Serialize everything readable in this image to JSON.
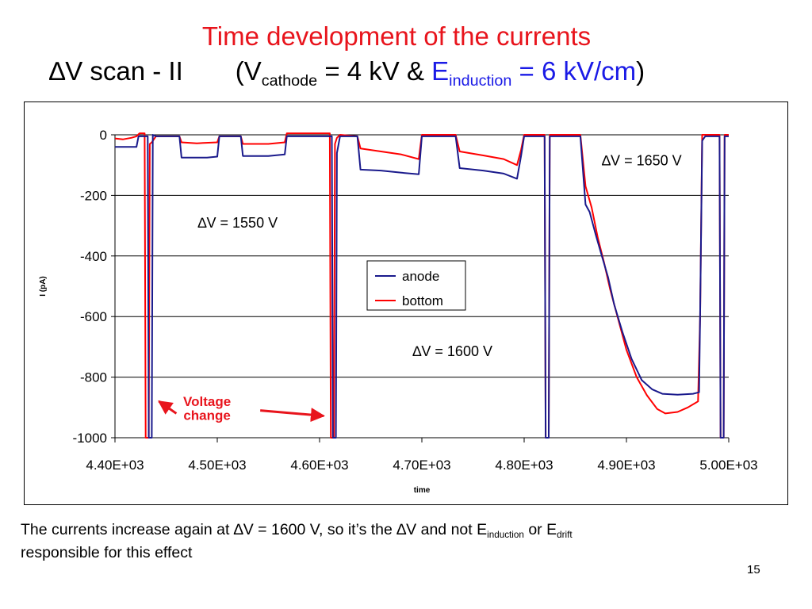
{
  "slide": {
    "title_line1": "Time development of the currents",
    "title_line2_prefix": "∆V scan - II",
    "title_paren_open": "(V",
    "title_cathode_sub": "cathode",
    "title_mid": " = 4 kV  & ",
    "title_e": "E",
    "title_induction_sub": "induction",
    "title_value": " = 6 kV/cm",
    "title_paren_close": ")",
    "caption_part1": "The currents increase again at  ∆V = 1600 V, so it’s the ∆V and not E",
    "caption_induction_sub": "induction",
    "caption_part2": " or E",
    "caption_drift_sub": "drift",
    "caption_line2": "responsible for this effect",
    "page_number": "15",
    "colors": {
      "title_red": "#e8141c",
      "title_blue": "#1a1ae6",
      "anode": "#1a1a8c",
      "bottom": "#ff0000",
      "annotation_red": "#e8141c"
    }
  },
  "chart_data": {
    "type": "line",
    "xlabel": "time",
    "ylabel": "I (pA)",
    "xlim": [
      4400,
      5000
    ],
    "ylim": [
      -1000,
      0
    ],
    "x_ticks": [
      4400,
      4500,
      4600,
      4700,
      4800,
      4900,
      5000
    ],
    "x_tick_labels": [
      "4.40E+03",
      "4.50E+03",
      "4.60E+03",
      "4.70E+03",
      "4.80E+03",
      "4.90E+03",
      "5.00E+03"
    ],
    "y_ticks": [
      0,
      -200,
      -400,
      -600,
      -800,
      -1000
    ],
    "y_tick_labels": [
      "0",
      "-200",
      "-400",
      "-600",
      "-800",
      "-1000"
    ],
    "grid": "horizontal",
    "legend_position": "center",
    "series": [
      {
        "name": "anode",
        "color": "#1a1a8c",
        "points": [
          [
            4400,
            -40
          ],
          [
            4421,
            -40
          ],
          [
            4423,
            -5
          ],
          [
            4432,
            -5
          ],
          [
            4433,
            -1000
          ],
          [
            4436,
            -1000
          ],
          [
            4437,
            0
          ],
          [
            4440,
            -5
          ],
          [
            4463,
            -5
          ],
          [
            4465,
            -75
          ],
          [
            4490,
            -75
          ],
          [
            4500,
            -72
          ],
          [
            4502,
            -5
          ],
          [
            4523,
            -5
          ],
          [
            4525,
            -70
          ],
          [
            4550,
            -70
          ],
          [
            4566,
            -65
          ],
          [
            4568,
            -5
          ],
          [
            4600,
            -5
          ],
          [
            4612,
            -5
          ],
          [
            4613,
            -1000
          ],
          [
            4616,
            -1000
          ],
          [
            4617,
            -60
          ],
          [
            4620,
            -5
          ],
          [
            4637,
            -5
          ],
          [
            4640,
            -115
          ],
          [
            4660,
            -118
          ],
          [
            4680,
            -125
          ],
          [
            4697,
            -130
          ],
          [
            4700,
            -5
          ],
          [
            4733,
            -5
          ],
          [
            4737,
            -110
          ],
          [
            4760,
            -118
          ],
          [
            4780,
            -128
          ],
          [
            4793,
            -145
          ],
          [
            4797,
            -70
          ],
          [
            4800,
            -5
          ],
          [
            4820,
            -5
          ],
          [
            4821,
            -1000
          ],
          [
            4824,
            -1000
          ],
          [
            4825,
            -5
          ],
          [
            4855,
            -5
          ],
          [
            4860,
            -230
          ],
          [
            4864,
            -255
          ],
          [
            4870,
            -330
          ],
          [
            4876,
            -400
          ],
          [
            4882,
            -470
          ],
          [
            4888,
            -560
          ],
          [
            4896,
            -650
          ],
          [
            4905,
            -740
          ],
          [
            4915,
            -810
          ],
          [
            4925,
            -840
          ],
          [
            4935,
            -855
          ],
          [
            4950,
            -858
          ],
          [
            4965,
            -855
          ],
          [
            4971,
            -850
          ],
          [
            4972,
            -600
          ],
          [
            4974,
            -20
          ],
          [
            4977,
            -5
          ],
          [
            4991,
            -5
          ],
          [
            4992,
            -1000
          ],
          [
            4995,
            -1000
          ],
          [
            4996,
            -5
          ],
          [
            5000,
            -5
          ]
        ]
      },
      {
        "name": "bottom",
        "color": "#ff0000",
        "points": [
          [
            4400,
            -12
          ],
          [
            4408,
            -15
          ],
          [
            4416,
            -10
          ],
          [
            4421,
            -5
          ],
          [
            4424,
            5
          ],
          [
            4429,
            5
          ],
          [
            4430,
            -1000
          ],
          [
            4433,
            -1000
          ],
          [
            4434,
            -30
          ],
          [
            4436,
            -25
          ],
          [
            4440,
            -5
          ],
          [
            4463,
            -5
          ],
          [
            4465,
            -25
          ],
          [
            4480,
            -28
          ],
          [
            4500,
            -25
          ],
          [
            4502,
            -5
          ],
          [
            4523,
            -5
          ],
          [
            4525,
            -30
          ],
          [
            4550,
            -30
          ],
          [
            4566,
            -25
          ],
          [
            4568,
            5
          ],
          [
            4600,
            5
          ],
          [
            4610,
            5
          ],
          [
            4611,
            -1000
          ],
          [
            4614,
            -1000
          ],
          [
            4615,
            -30
          ],
          [
            4617,
            -10
          ],
          [
            4620,
            0
          ],
          [
            4637,
            -5
          ],
          [
            4640,
            -45
          ],
          [
            4660,
            -55
          ],
          [
            4680,
            -65
          ],
          [
            4697,
            -80
          ],
          [
            4700,
            0
          ],
          [
            4733,
            0
          ],
          [
            4737,
            -55
          ],
          [
            4760,
            -68
          ],
          [
            4780,
            -80
          ],
          [
            4793,
            -100
          ],
          [
            4797,
            -50
          ],
          [
            4800,
            0
          ],
          [
            4820,
            0
          ],
          [
            4821,
            -1000
          ],
          [
            4824,
            -1000
          ],
          [
            4825,
            0
          ],
          [
            4855,
            0
          ],
          [
            4860,
            -170
          ],
          [
            4866,
            -240
          ],
          [
            4872,
            -340
          ],
          [
            4878,
            -420
          ],
          [
            4884,
            -510
          ],
          [
            4892,
            -610
          ],
          [
            4900,
            -710
          ],
          [
            4910,
            -800
          ],
          [
            4920,
            -860
          ],
          [
            4930,
            -905
          ],
          [
            4938,
            -920
          ],
          [
            4950,
            -915
          ],
          [
            4960,
            -900
          ],
          [
            4970,
            -880
          ],
          [
            4972,
            -600
          ],
          [
            4974,
            0
          ],
          [
            4991,
            0
          ],
          [
            4992,
            -1000
          ],
          [
            4995,
            -1000
          ],
          [
            4996,
            0
          ],
          [
            5000,
            0
          ]
        ]
      }
    ],
    "annotations": [
      {
        "text": "∆V = 1650 V",
        "x": 4915,
        "y": -85
      },
      {
        "text": "∆V = 1550 V",
        "x": 4520,
        "y": -290
      },
      {
        "text": "∆V = 1600 V",
        "x": 4730,
        "y": -715
      },
      {
        "text": "Voltage",
        "x": 4490,
        "y": -880,
        "color": "#e8141c"
      },
      {
        "text": "change",
        "x": 4490,
        "y": -925,
        "color": "#e8141c"
      }
    ],
    "arrows": [
      {
        "from": [
          4460,
          -920
        ],
        "to": [
          4443,
          -880
        ],
        "color": "#e8141c"
      },
      {
        "from": [
          4542,
          -910
        ],
        "to": [
          4604,
          -928
        ],
        "color": "#e8141c"
      }
    ]
  }
}
